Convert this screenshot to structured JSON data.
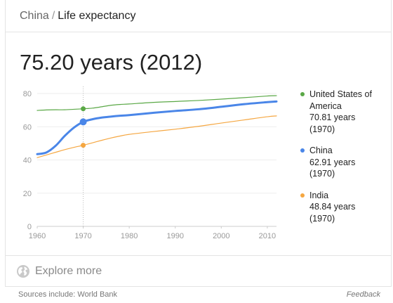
{
  "breadcrumb": {
    "parent": "China",
    "separator": "/",
    "current": "Life expectancy"
  },
  "headline": "75.20 years (2012)",
  "chart_data": {
    "type": "line",
    "x_ticks": [
      "1960",
      "1970",
      "1980",
      "1990",
      "2000",
      "2010"
    ],
    "y_ticks": [
      "0",
      "20",
      "40",
      "60",
      "80"
    ],
    "xlim": [
      1960,
      2012
    ],
    "ylim": [
      0,
      80
    ],
    "grid": true,
    "legend_position": "right",
    "highlight_year": 1970,
    "series": [
      {
        "name": "United States of America",
        "color": "#5aa846",
        "x": [
          1960,
          1962,
          1964,
          1966,
          1968,
          1970,
          1972,
          1974,
          1976,
          1978,
          1980,
          1985,
          1990,
          1995,
          2000,
          2005,
          2010,
          2012
        ],
        "y": [
          69.8,
          70.1,
          70.2,
          70.2,
          70.5,
          70.81,
          71.2,
          72.0,
          72.9,
          73.4,
          73.7,
          74.6,
          75.2,
          75.8,
          76.6,
          77.5,
          78.5,
          78.7
        ]
      },
      {
        "name": "China",
        "color": "#4a86e8",
        "x": [
          1960,
          1962,
          1964,
          1966,
          1968,
          1970,
          1972,
          1974,
          1976,
          1978,
          1980,
          1985,
          1990,
          1995,
          2000,
          2005,
          2010,
          2012
        ],
        "y": [
          43.5,
          44.5,
          48.5,
          54.5,
          59.5,
          62.91,
          64.5,
          65.5,
          66.1,
          66.6,
          67.0,
          68.3,
          69.5,
          70.5,
          72.0,
          73.6,
          74.8,
          75.2
        ]
      },
      {
        "name": "India",
        "color": "#f5a742",
        "x": [
          1960,
          1962,
          1964,
          1966,
          1968,
          1970,
          1972,
          1974,
          1976,
          1978,
          1980,
          1985,
          1990,
          1995,
          2000,
          2005,
          2010,
          2012
        ],
        "y": [
          41.4,
          43.0,
          44.6,
          46.2,
          47.6,
          48.84,
          50.3,
          51.8,
          53.2,
          54.4,
          55.4,
          57.0,
          58.5,
          60.2,
          62.2,
          64.1,
          66.0,
          66.5
        ]
      }
    ],
    "legend": [
      {
        "name_lines": [
          "United States of",
          "America"
        ],
        "value": "70.81 years",
        "year": "(1970)",
        "color": "#5aa846"
      },
      {
        "name_lines": [
          "China"
        ],
        "value": "62.91 years",
        "year": "(1970)",
        "color": "#4a86e8"
      },
      {
        "name_lines": [
          "India"
        ],
        "value": "48.84 years",
        "year": "(1970)",
        "color": "#f5a742"
      }
    ]
  },
  "explore": {
    "label": "Explore more",
    "icon": "globe-icon"
  },
  "footer": {
    "sources": "Sources include: World Bank",
    "feedback": "Feedback"
  }
}
